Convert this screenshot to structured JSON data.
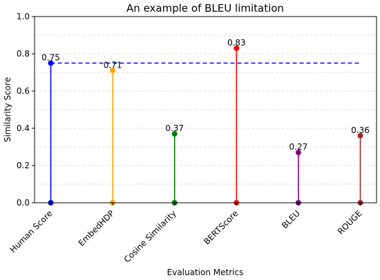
{
  "chart_data": {
    "type": "stem",
    "title": "An example of BLEU limitation",
    "xlabel": "Evaluation Metrics",
    "ylabel": "Similarity Score",
    "ylim": [
      0,
      1.0
    ],
    "yticks": [
      "0.0",
      "0.2",
      "0.4",
      "0.6",
      "0.8",
      "1.0"
    ],
    "grid": "horizontal dashed",
    "categories": [
      "Human Score",
      "EmbedHDP",
      "Cosine Similarity",
      "BERTScore",
      "BLEU",
      "ROUGE"
    ],
    "values": [
      0.75,
      0.71,
      0.37,
      0.83,
      0.27,
      0.36
    ],
    "value_labels": [
      "0.75",
      "0.71",
      "0.37",
      "0.83",
      "0.27",
      "0.36"
    ],
    "colors": [
      "#0000ff",
      "#ffa500",
      "#008000",
      "#ff0000",
      "#800080",
      "#a52a2a"
    ],
    "reference_line": {
      "value": 0.75,
      "color": "#0000ff",
      "style": "dashed"
    }
  }
}
